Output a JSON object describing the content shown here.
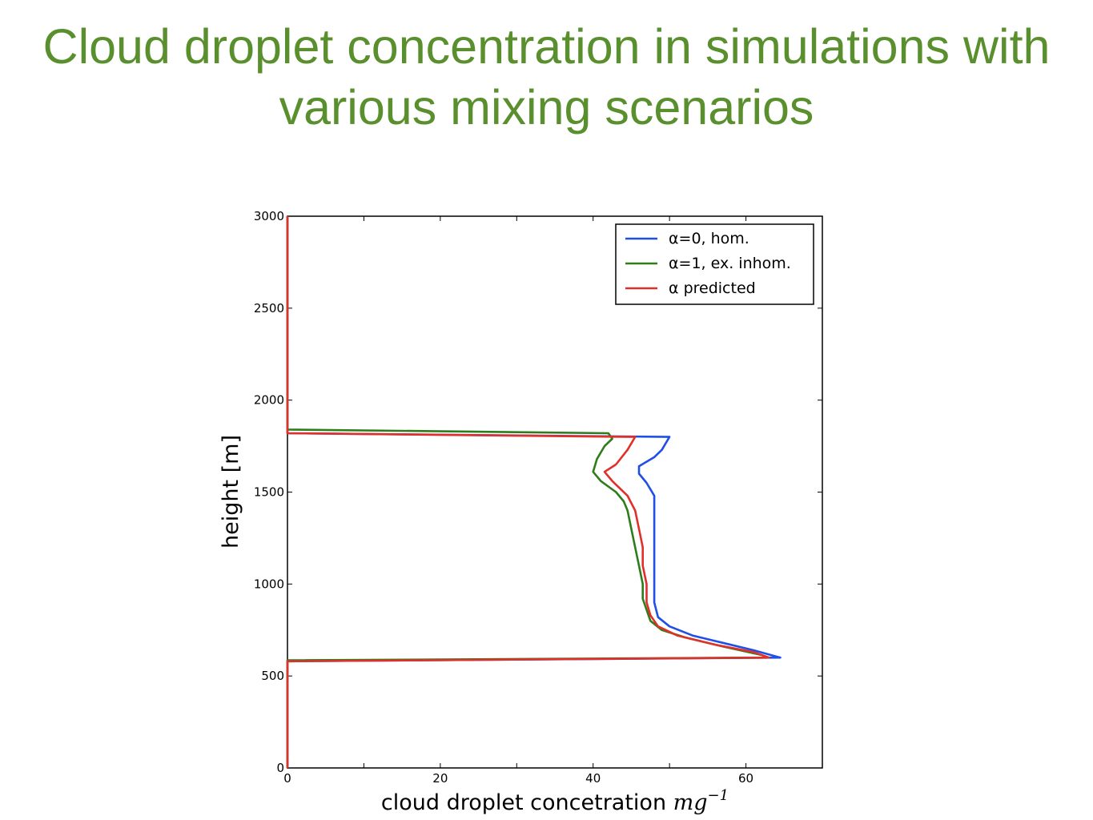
{
  "slide": {
    "title_line1": "Cloud droplet concentration in simulations with",
    "title_line2": "various mixing scenarios"
  },
  "chart_data": {
    "type": "line",
    "xlabel": "cloud droplet concetration",
    "xlabel_unit": "mg",
    "xlabel_unit_exp": "−1",
    "ylabel": "height [m]",
    "xlim": [
      0,
      70
    ],
    "ylim": [
      0,
      3000
    ],
    "xticks": [
      0,
      20,
      40,
      60
    ],
    "xticks_minor": [
      10,
      30,
      50,
      70
    ],
    "yticks": [
      0,
      500,
      1000,
      1500,
      2000,
      2500,
      3000
    ],
    "legend_placement": "top-right",
    "grid": false,
    "series": [
      {
        "name": "hom.",
        "name_math": "α = 0",
        "legend_label": "α=0, hom.",
        "color": "#1f4fe6",
        "points": [
          [
            0,
            3000
          ],
          [
            0,
            1820
          ],
          [
            50,
            1800
          ],
          [
            49,
            1730
          ],
          [
            48,
            1690
          ],
          [
            46,
            1640
          ],
          [
            46,
            1600
          ],
          [
            47,
            1550
          ],
          [
            48,
            1480
          ],
          [
            48,
            1400
          ],
          [
            48,
            1300
          ],
          [
            48,
            1200
          ],
          [
            48,
            1100
          ],
          [
            48,
            1000
          ],
          [
            48,
            900
          ],
          [
            48.5,
            820
          ],
          [
            50,
            770
          ],
          [
            53,
            720
          ],
          [
            57,
            680
          ],
          [
            61,
            640
          ],
          [
            64.5,
            600
          ],
          [
            0,
            580
          ],
          [
            0,
            0
          ]
        ]
      },
      {
        "name": "ex. inhom.",
        "name_math": "α = 1",
        "legend_label": "α=1, ex. inhom.",
        "color": "#2e7d1a",
        "points": [
          [
            0,
            3000
          ],
          [
            0,
            1840
          ],
          [
            42,
            1820
          ],
          [
            42.5,
            1790
          ],
          [
            41.5,
            1750
          ],
          [
            40.5,
            1680
          ],
          [
            40,
            1610
          ],
          [
            41,
            1560
          ],
          [
            43,
            1500
          ],
          [
            44,
            1450
          ],
          [
            44.5,
            1400
          ],
          [
            45,
            1300
          ],
          [
            45.5,
            1200
          ],
          [
            46,
            1100
          ],
          [
            46.5,
            1000
          ],
          [
            46.5,
            920
          ],
          [
            47,
            860
          ],
          [
            47.5,
            800
          ],
          [
            49,
            750
          ],
          [
            52,
            710
          ],
          [
            57,
            660
          ],
          [
            62,
            615
          ],
          [
            63,
            600
          ],
          [
            0,
            585
          ],
          [
            0,
            0
          ]
        ]
      },
      {
        "name": "predicted",
        "name_math": "α",
        "legend_label": "α predicted",
        "color": "#e0302a",
        "points": [
          [
            0,
            3000
          ],
          [
            0,
            1820
          ],
          [
            45.5,
            1800
          ],
          [
            44.5,
            1730
          ],
          [
            43,
            1650
          ],
          [
            41.5,
            1610
          ],
          [
            42.5,
            1560
          ],
          [
            44.5,
            1480
          ],
          [
            45.5,
            1400
          ],
          [
            46,
            1300
          ],
          [
            46.5,
            1200
          ],
          [
            46.5,
            1100
          ],
          [
            47,
            1000
          ],
          [
            47,
            900
          ],
          [
            47.5,
            830
          ],
          [
            48.5,
            770
          ],
          [
            51,
            720
          ],
          [
            56,
            670
          ],
          [
            61,
            630
          ],
          [
            63,
            600
          ],
          [
            0,
            580
          ],
          [
            0,
            0
          ]
        ]
      }
    ]
  }
}
